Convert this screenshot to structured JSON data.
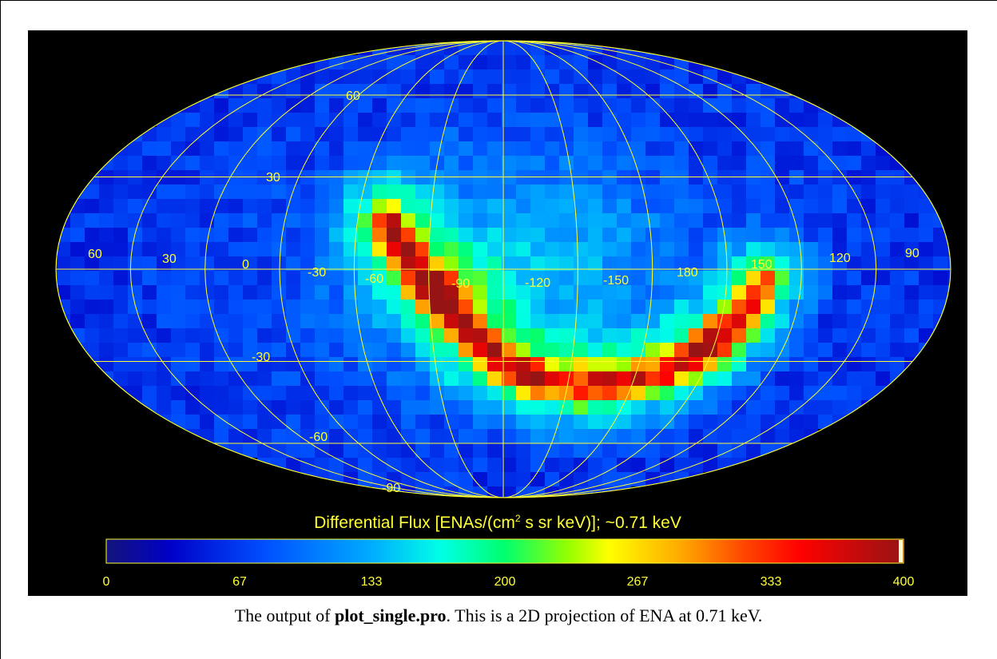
{
  "map": {
    "projection": "Mollweide",
    "latitude_labels": [
      "60",
      "30",
      "-30",
      "-60",
      "-90"
    ],
    "longitude_labels": [
      "60",
      "30",
      "0",
      "-30",
      "-60",
      "-90",
      "-120",
      "-150",
      "180",
      "150",
      "120",
      "90"
    ],
    "gridline_color": "#ffff33",
    "background": "#000000",
    "features": {
      "ribbon": "narrow band of high flux arcing from upper-left (-60) down to lower-center and rising to the right near 150",
      "peak_value_approx": 380
    }
  },
  "colorbar": {
    "title_prefix": "Differential Flux [ENAs/(cm",
    "title_sup": "2",
    "title_suffix": " s sr keV)];   ~0.71 keV",
    "ticks": [
      "0",
      "67",
      "133",
      "200",
      "267",
      "333",
      "400"
    ],
    "min": 0,
    "max": 400,
    "colormap": "rainbow (dark blue → cyan → green → yellow → red → dark red)"
  },
  "caption": {
    "prefix": "The output of ",
    "bold": "plot_single.pro",
    "suffix": ".  This is a 2D projection of ENA at 0.71 keV."
  }
}
